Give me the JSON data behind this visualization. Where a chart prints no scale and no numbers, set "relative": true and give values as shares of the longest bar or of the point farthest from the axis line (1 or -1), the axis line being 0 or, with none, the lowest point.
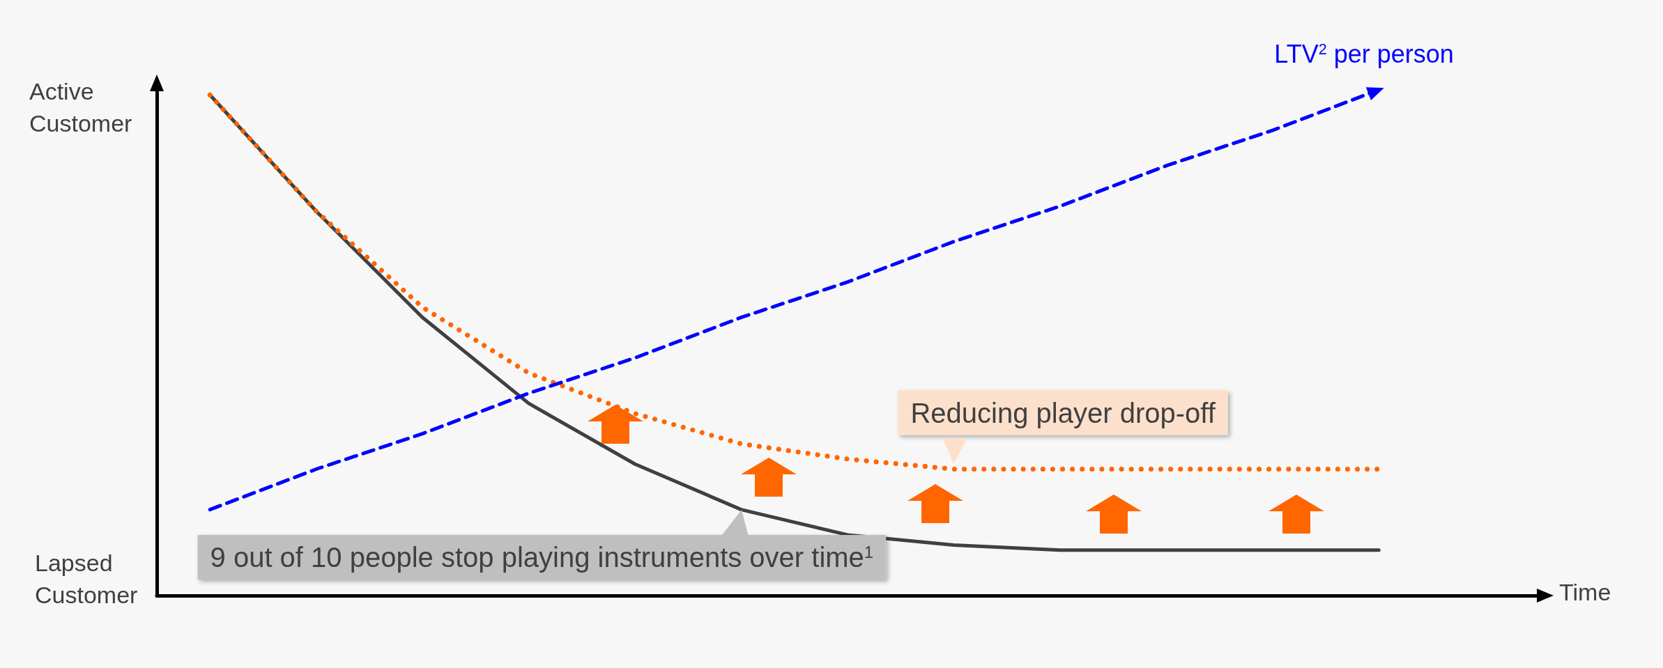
{
  "chart_data": {
    "type": "line",
    "relative": true,
    "xlabel": "Time",
    "ylabel": "Active Customer",
    "categories": [
      null,
      null,
      null,
      null,
      null,
      null,
      null,
      null,
      null,
      null,
      null,
      null,
      null
    ],
    "grid": false,
    "legend": false,
    "marker": "none",
    "annotations": [
      "Lapsed Customer",
      "9 out of 10 people stop playing instruments over time$^{1}$",
      "Reducing player drop-off"
    ],
    "series": [
      {
        "color": "#404040",
        "line_style": "solid",
        "values": [
          0.99,
          0.76,
          0.55,
          0.38,
          0.26,
          0.17,
          0.12,
          0.1,
          0.09,
          0.09,
          0.09,
          0.09,
          null
        ]
      },
      {
        "color": "#ff6600",
        "line_style": "dotted",
        "values": [
          0.99,
          0.76,
          0.57,
          0.44,
          0.36,
          0.3,
          0.27,
          0.25,
          0.25,
          0.25,
          0.25,
          0.25,
          null
        ]
      },
      {
        "name": "LTV$^{2}$ per person",
        "color": "#0000ff",
        "line_style": "dashed",
        "values": [
          0.17,
          0.25,
          0.32,
          0.4,
          0.47,
          0.55,
          0.62,
          0.7,
          0.77,
          0.85,
          0.92,
          1,
          null
        ]
      }
    ]
  }
}
